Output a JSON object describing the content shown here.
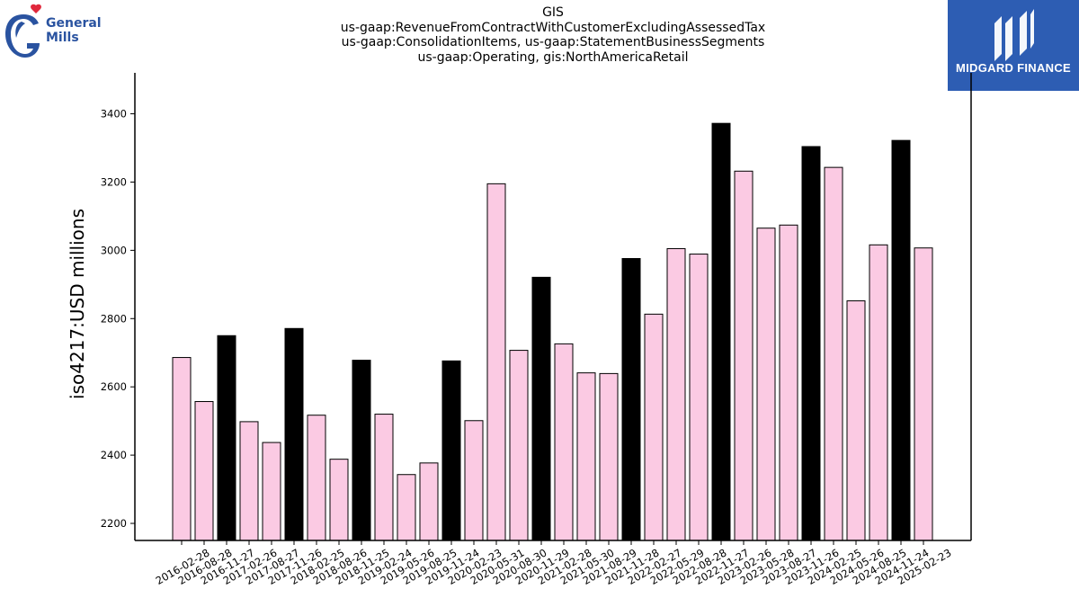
{
  "header": {
    "title_lines": [
      "GIS",
      "us-gaap:RevenueFromContractWithCustomerExcludingAssessedTax",
      "us-gaap:ConsolidationItems, us-gaap:StatementBusinessSegments",
      "us-gaap:Operating, gis:NorthAmericaRetail"
    ]
  },
  "logos": {
    "left": {
      "line1": "General",
      "line2": "Mills",
      "color": "#2a53a0",
      "heart_color": "#e0283c"
    },
    "right": {
      "text": "MIDGARD FINANCE",
      "background": "#2d5db3"
    }
  },
  "chart_data": {
    "type": "bar",
    "ylabel": "iso4217:USD  millions",
    "ylim": [
      2150,
      3520
    ],
    "yticks": [
      2200,
      2400,
      2600,
      2800,
      3000,
      3200,
      3400
    ],
    "colors": {
      "quarter": "#fbcae3",
      "fiscal_q2": "#000000",
      "edge": "#000000"
    },
    "categories": [
      "2016-02-28",
      "2016-08-28",
      "2016-11-27",
      "2017-02-26",
      "2017-08-27",
      "2017-11-26",
      "2018-02-25",
      "2018-08-26",
      "2018-11-25",
      "2019-02-24",
      "2019-05-26",
      "2019-08-25",
      "2019-11-24",
      "2020-02-23",
      "2020-05-31",
      "2020-08-30",
      "2020-11-29",
      "2021-02-28",
      "2021-05-30",
      "2021-08-29",
      "2021-11-28",
      "2022-02-27",
      "2022-05-29",
      "2022-08-28",
      "2022-11-27",
      "2023-02-26",
      "2023-05-28",
      "2023-08-27",
      "2023-11-26",
      "2024-02-25",
      "2024-05-26",
      "2024-08-25",
      "2024-11-24",
      "2025-02-23"
    ],
    "values": [
      2686,
      2557,
      2750,
      2498,
      2437,
      2771,
      2517,
      2388,
      2678,
      2520,
      2343,
      2377,
      2676,
      2501,
      3195,
      2707,
      2921,
      2726,
      2641,
      2639,
      2976,
      2813,
      3005,
      2989,
      3372,
      3232,
      3065,
      3074,
      3304,
      3243,
      2852,
      3016,
      3322,
      3007
    ],
    "highlight": [
      false,
      false,
      true,
      false,
      false,
      true,
      false,
      false,
      true,
      false,
      false,
      false,
      true,
      false,
      false,
      false,
      true,
      false,
      false,
      false,
      true,
      false,
      false,
      false,
      true,
      false,
      false,
      false,
      true,
      false,
      false,
      false,
      true,
      false
    ]
  }
}
